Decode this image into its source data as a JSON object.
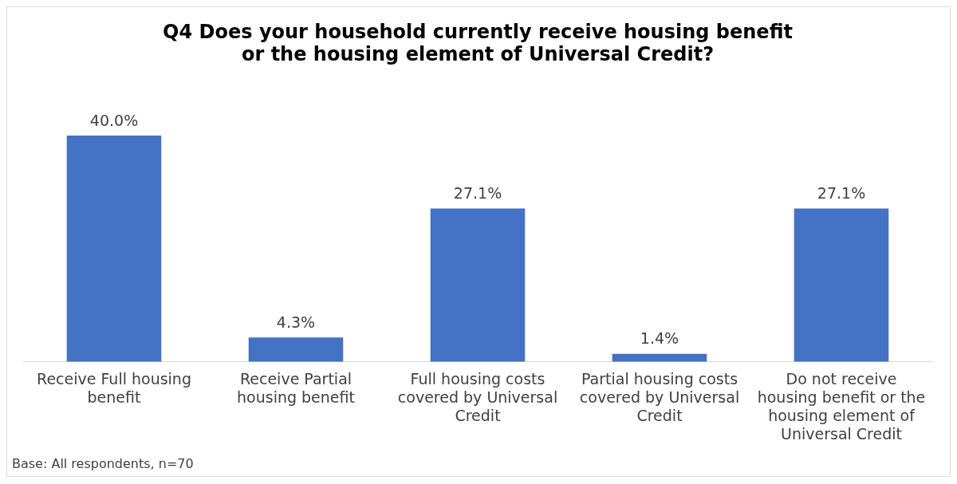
{
  "chart_data": {
    "type": "bar",
    "title": "Q4 Does your household currently receive housing benefit or the housing element of Universal Credit?",
    "categories": [
      "Receive Full housing benefit",
      "Receive Partial housing benefit",
      "Full housing costs covered by Universal Credit",
      "Partial housing costs covered by Universal Credit",
      "Do not receive housing benefit or the housing element of Universal Credit"
    ],
    "values": [
      40.0,
      4.3,
      27.1,
      1.4,
      27.1
    ],
    "value_labels": [
      "40.0%",
      "4.3%",
      "27.1%",
      "1.4%",
      "27.1%"
    ],
    "color": "#4472c4",
    "grid": false,
    "legend": false,
    "annotations": [
      "Base: All respondents, n=70"
    ]
  }
}
